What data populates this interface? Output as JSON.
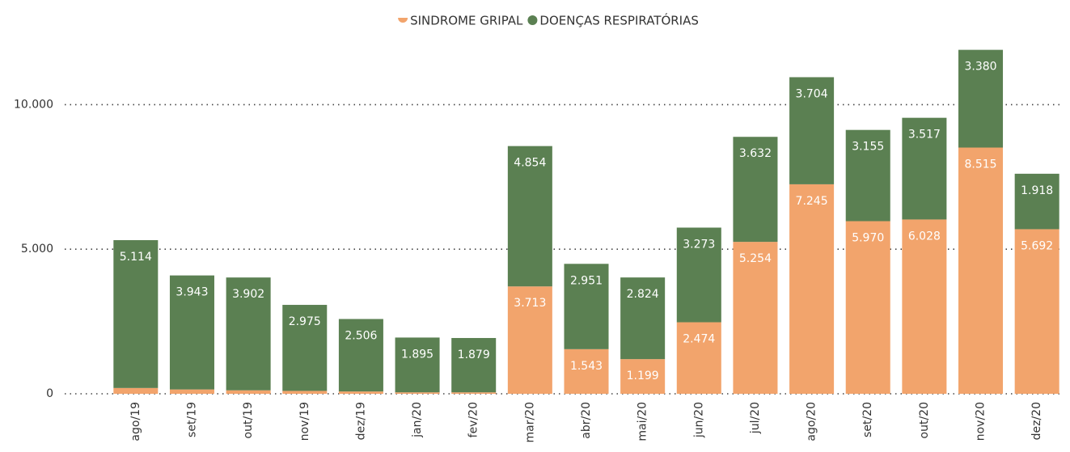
{
  "chart_data": {
    "type": "stacked_bar",
    "categories": [
      "ago/19",
      "set/19",
      "out/19",
      "nov/19",
      "dez/19",
      "jan/20",
      "fev/20",
      "mar/20",
      "abr/20",
      "mai/20",
      "jun/20",
      "jul/20",
      "ago/20",
      "set/20",
      "out/20",
      "nov/20",
      "dez/20"
    ],
    "series": [
      {
        "name": "SINDROME GRIPAL",
        "color": "#f2a46c",
        "values": [
          200,
          150,
          120,
          100,
          80,
          50,
          50,
          3713,
          1543,
          1199,
          2474,
          5254,
          7245,
          5970,
          6028,
          8515,
          5692
        ],
        "value_labels": [
          null,
          null,
          null,
          null,
          null,
          null,
          null,
          "3.713",
          "1.543",
          "1.199",
          "2.474",
          "5.254",
          "7.245",
          "5.970",
          "6.028",
          "8.515",
          "5.692"
        ]
      },
      {
        "name": "DOENÇAS RESPIRATÓRIAS",
        "color": "#5b8052",
        "values": [
          5114,
          3943,
          3902,
          2975,
          2506,
          1895,
          1879,
          4854,
          2951,
          2824,
          3273,
          3632,
          3704,
          3155,
          3517,
          3380,
          1918
        ],
        "value_labels": [
          "5.114",
          "3.943",
          "3.902",
          "2.975",
          "2.506",
          "1.895",
          "1.879",
          "4.854",
          "2.951",
          "2.824",
          "3.273",
          "3.632",
          "3.704",
          "3.155",
          "3.517",
          "3.380",
          "1.918"
        ]
      }
    ],
    "ylim": [
      0,
      12500
    ],
    "yticks": [
      0,
      {
        "value": 5000,
        "label": "5.000"
      },
      {
        "value": 10000,
        "label": "10.000"
      }
    ],
    "grid": true
  }
}
